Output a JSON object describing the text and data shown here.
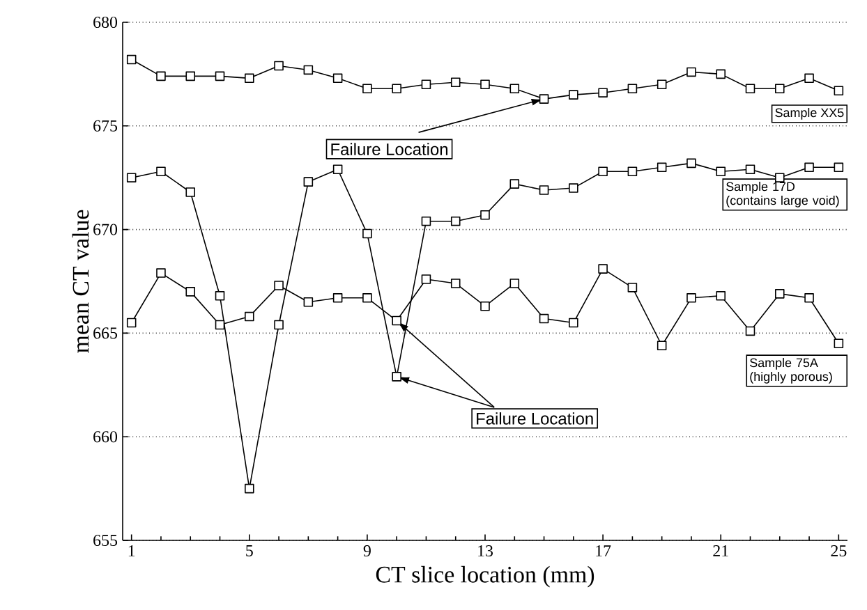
{
  "chart_data": {
    "type": "line",
    "xlabel": "CT slice location (mm)",
    "ylabel": "mean CT value",
    "x": [
      1,
      2,
      3,
      4,
      5,
      6,
      7,
      8,
      9,
      10,
      11,
      12,
      13,
      14,
      15,
      16,
      17,
      18,
      19,
      20,
      21,
      22,
      23,
      24,
      25
    ],
    "series": [
      {
        "name": "Sample XX5",
        "color": "#000000",
        "values": [
          678.2,
          677.4,
          677.4,
          677.4,
          677.3,
          677.9,
          677.7,
          677.3,
          676.8,
          676.8,
          677.0,
          677.1,
          677.0,
          676.8,
          676.3,
          676.5,
          676.6,
          676.8,
          677.0,
          677.6,
          677.5,
          676.8,
          676.8,
          677.3,
          676.7
        ]
      },
      {
        "name": "Sample 17D (contains large void)",
        "color": "#000000",
        "values": [
          672.5,
          672.8,
          671.8,
          666.8,
          657.5,
          665.4,
          672.3,
          672.9,
          669.8,
          662.9,
          670.4,
          670.4,
          670.7,
          672.2,
          671.9,
          672.0,
          672.8,
          672.8,
          673.0,
          673.2,
          672.8,
          672.9,
          672.5,
          673.0,
          673.0
        ]
      },
      {
        "name": "Sample 75A (highly porous)",
        "color": "#000000",
        "values": [
          665.5,
          667.9,
          667.0,
          665.4,
          665.8,
          667.3,
          666.5,
          666.7,
          666.7,
          665.6,
          667.6,
          667.4,
          666.3,
          667.4,
          665.7,
          665.5,
          668.1,
          667.2,
          664.4,
          666.7,
          666.8,
          665.1,
          666.9,
          666.7,
          664.5
        ]
      }
    ],
    "annotations": [
      {
        "text": "Failure Location",
        "x": 15,
        "y": 676.3
      },
      {
        "text": "Failure Location",
        "x": 10,
        "y": 662.9
      }
    ],
    "xlim": [
      0.7,
      25.3
    ],
    "xticks": [
      1,
      5,
      9,
      13,
      17,
      21,
      25
    ],
    "ylim": [
      655,
      680
    ],
    "yticks": [
      655,
      660,
      665,
      670,
      675,
      680
    ],
    "grid": "y",
    "marker": "square",
    "line_style": "solid"
  }
}
